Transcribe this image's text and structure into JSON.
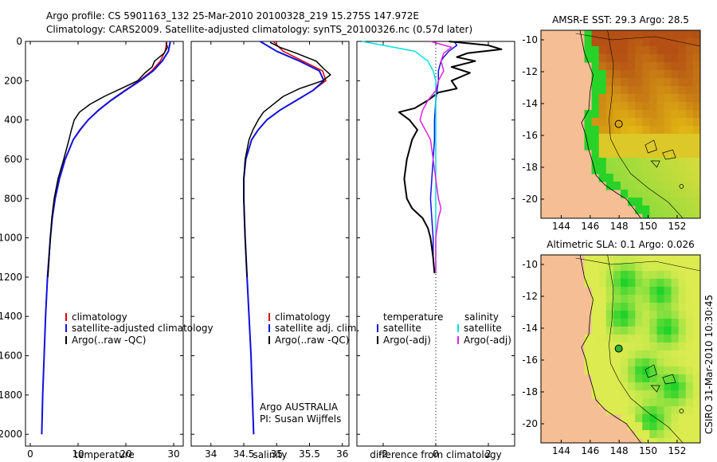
{
  "header": {
    "line1": "Argo profile: CS 5901163_132 25-Mar-2010 20100328_219 15.275S 147.972E",
    "line2": "Climatology: CARS2009. Satellite-adjusted climatology: synTS_20100326.nc (0.57d later)"
  },
  "credit": "Argo AUSTRALIA",
  "pi": "PI: Susan Wijffels",
  "side_label": "CSIRO 31-Mar-2010 10:30:45",
  "colors": {
    "climatology": "#e00000",
    "satellite": "#1010e0",
    "argo": "#000000",
    "sat_salt": "#00e0e0",
    "argo_salt": "#e020e0",
    "land": "#f5be94"
  },
  "chart_data": [
    {
      "type": "line",
      "id": "temperature",
      "xlabel": "temperature",
      "ylabel": "",
      "xlim": [
        -1,
        32
      ],
      "ylim": [
        2060,
        0
      ],
      "xticks": [
        0,
        10,
        20,
        30
      ],
      "yticks": [
        0,
        200,
        400,
        600,
        800,
        1000,
        1200,
        1400,
        1600,
        1800,
        2000
      ],
      "legend": {
        "placement": "lower-right",
        "entries": [
          "climatology",
          "satellite-adjusted climatology",
          "Argo(..raw -QC)"
        ]
      },
      "series": [
        {
          "name": "climatology",
          "depth": [
            0,
            50,
            100,
            150,
            200,
            250,
            300,
            350,
            400,
            450,
            500,
            600,
            700,
            800,
            900,
            1000,
            1200,
            1400,
            1600,
            1800,
            2000
          ],
          "values": [
            28.6,
            28.2,
            27.2,
            25.4,
            22.8,
            19.7,
            16.8,
            14.2,
            12.1,
            10.5,
            9.0,
            7.3,
            6.1,
            5.2,
            4.6,
            4.2,
            3.6,
            3.2,
            2.9,
            2.6,
            2.4
          ]
        },
        {
          "name": "satellite-adjusted climatology",
          "depth": [
            0,
            50,
            100,
            150,
            200,
            250,
            300,
            350,
            400,
            450,
            500,
            600,
            700,
            800,
            900,
            1000,
            1200,
            1400,
            1600,
            1800,
            2000
          ],
          "values": [
            29.3,
            28.9,
            27.6,
            25.7,
            23.0,
            19.9,
            16.9,
            14.3,
            12.1,
            10.4,
            9.0,
            7.3,
            6.1,
            5.2,
            4.6,
            4.2,
            3.6,
            3.2,
            2.9,
            2.6,
            2.4
          ]
        },
        {
          "name": "Argo(..raw -QC)",
          "depth": [
            5,
            30,
            60,
            100,
            130,
            160,
            200,
            240,
            280,
            320,
            360,
            400,
            450,
            500,
            600,
            700,
            800,
            900,
            1000,
            1200
          ],
          "values": [
            28.4,
            28.7,
            28.0,
            26.0,
            25.5,
            24.0,
            22.5,
            19.0,
            15.5,
            12.5,
            10.3,
            9.2,
            8.6,
            8.1,
            7.0,
            5.8,
            5.0,
            4.5,
            4.2,
            3.7
          ]
        }
      ]
    },
    {
      "type": "line",
      "id": "salinity",
      "xlabel": "salinity",
      "ylabel": "",
      "xlim": [
        33.7,
        36.1
      ],
      "ylim": [
        2060,
        0
      ],
      "xticks": [
        34,
        34.5,
        35,
        35.5,
        36
      ],
      "legend": {
        "placement": "lower-right",
        "entries": [
          "climatology",
          "satellite adj. clim.",
          "Argo(..raw -QC)"
        ]
      },
      "series": [
        {
          "name": "climatology",
          "depth": [
            0,
            50,
            100,
            150,
            200,
            250,
            300,
            350,
            400,
            450,
            500,
            600,
            700,
            800,
            900,
            1000,
            1200,
            1400,
            1600,
            1800,
            2000
          ],
          "values": [
            34.95,
            35.1,
            35.4,
            35.7,
            35.75,
            35.55,
            35.3,
            35.05,
            34.85,
            34.72,
            34.62,
            34.53,
            34.5,
            34.5,
            34.51,
            34.52,
            34.55,
            34.58,
            34.61,
            34.63,
            34.65
          ]
        },
        {
          "name": "satellite adj. clim.",
          "depth": [
            0,
            50,
            100,
            150,
            200,
            250,
            300,
            350,
            400,
            450,
            500,
            600,
            700,
            800,
            900,
            1000,
            1200,
            1400,
            1600,
            1800,
            2000
          ],
          "values": [
            34.75,
            35.0,
            35.35,
            35.65,
            35.72,
            35.55,
            35.3,
            35.05,
            34.85,
            34.72,
            34.62,
            34.53,
            34.5,
            34.5,
            34.51,
            34.52,
            34.55,
            34.58,
            34.61,
            34.63,
            34.65
          ]
        },
        {
          "name": "Argo(..raw -QC)",
          "depth": [
            5,
            30,
            60,
            100,
            140,
            170,
            200,
            240,
            280,
            320,
            360,
            400,
            450,
            500,
            600,
            700,
            800,
            900,
            1000,
            1200
          ],
          "values": [
            34.9,
            35.05,
            35.3,
            35.6,
            35.72,
            35.82,
            35.7,
            35.35,
            35.1,
            34.95,
            34.8,
            34.72,
            34.64,
            34.58,
            34.52,
            34.5,
            34.5,
            34.51,
            34.52,
            34.55
          ]
        }
      ]
    },
    {
      "type": "line",
      "id": "difference",
      "xlabel": "difference from climatology",
      "ylabel": "",
      "xlim": [
        -3,
        3
      ],
      "ylim": [
        2060,
        0
      ],
      "xticks": [
        -2,
        0,
        2
      ],
      "xtick_labels": [
        "-2",
        "0",
        "2"
      ],
      "legend": {
        "placement": "lower-right",
        "entries": [
          "temperature",
          "satellite",
          "Argo(-adj)",
          "salinity",
          "satellite",
          "Argo(-adj)"
        ]
      },
      "series": [
        {
          "name": "temperature satellite",
          "depth": [
            0,
            20,
            50,
            80,
            100,
            150,
            200,
            250,
            300,
            400,
            500,
            600,
            700,
            800,
            900,
            1000,
            1100,
            1180
          ],
          "values": [
            0.7,
            0.8,
            0.5,
            0.3,
            0.2,
            0.1,
            0.1,
            0.05,
            0.0,
            -0.05,
            -0.05,
            -0.1,
            -0.15,
            -0.2,
            -0.15,
            -0.1,
            -0.1,
            -0.05
          ]
        },
        {
          "name": "temperature Argo(-adj)",
          "depth": [
            0,
            20,
            40,
            60,
            80,
            100,
            130,
            160,
            200,
            240,
            260,
            300,
            340,
            360,
            400,
            450,
            500,
            550,
            600,
            700,
            800,
            850,
            900,
            950,
            1000,
            1100,
            1180
          ],
          "values": [
            0.5,
            2.0,
            2.5,
            1.2,
            0.8,
            1.5,
            0.6,
            1.3,
            0.6,
            0.8,
            0.1,
            -0.3,
            -0.8,
            -1.4,
            -1.0,
            -0.7,
            -0.9,
            -1.0,
            -1.1,
            -1.2,
            -1.1,
            -0.9,
            -0.5,
            -0.3,
            -0.2,
            -0.1,
            -0.05
          ]
        },
        {
          "name": "salinity satellite",
          "depth": [
            0,
            20,
            50,
            100,
            150,
            200,
            300,
            400,
            500,
            600,
            700,
            800,
            900,
            1000,
            1100,
            1180
          ],
          "values": [
            -2.8,
            -2.0,
            -0.8,
            -0.3,
            -0.1,
            0.0,
            0.0,
            0.0,
            0.0,
            0.0,
            0.0,
            0.0,
            0.0,
            0.0,
            0.0,
            0.0
          ]
        },
        {
          "name": "salinity Argo(-adj)",
          "depth": [
            0,
            30,
            60,
            100,
            150,
            200,
            250,
            300,
            350,
            400,
            450,
            500,
            600,
            700,
            800,
            850,
            900,
            1000,
            1100,
            1180
          ],
          "values": [
            -0.2,
            0.6,
            0.3,
            0.2,
            0.3,
            0.1,
            0.0,
            -0.3,
            -0.5,
            -0.6,
            -0.4,
            -0.2,
            -0.1,
            0.0,
            0.1,
            0.2,
            0.1,
            0.0,
            0.0,
            0.0
          ]
        }
      ]
    },
    {
      "type": "heatmap",
      "id": "sst_map",
      "title": "AMSR-E SST: 29.3 Argo: 28.5",
      "xlabel": "",
      "ylabel": "",
      "xlim": [
        142.6,
        153.6
      ],
      "ylim": [
        -21.2,
        -9.4
      ],
      "xticks": [
        144,
        146,
        148,
        150,
        152
      ],
      "yticks": [
        -10,
        -12,
        -14,
        -16,
        -18,
        -20
      ],
      "marker": {
        "lon": 147.97,
        "lat": -15.28
      }
    },
    {
      "type": "heatmap",
      "id": "sla_map",
      "title": "Altimetric SLA: 0.1 Argo: 0.026",
      "xlabel": "",
      "ylabel": "",
      "xlim": [
        142.6,
        153.6
      ],
      "ylim": [
        -21.2,
        -9.4
      ],
      "xticks": [
        144,
        146,
        148,
        150,
        152
      ],
      "yticks": [
        -10,
        -12,
        -14,
        -16,
        -18,
        -20
      ],
      "marker": {
        "lon": 147.97,
        "lat": -15.28
      }
    }
  ]
}
